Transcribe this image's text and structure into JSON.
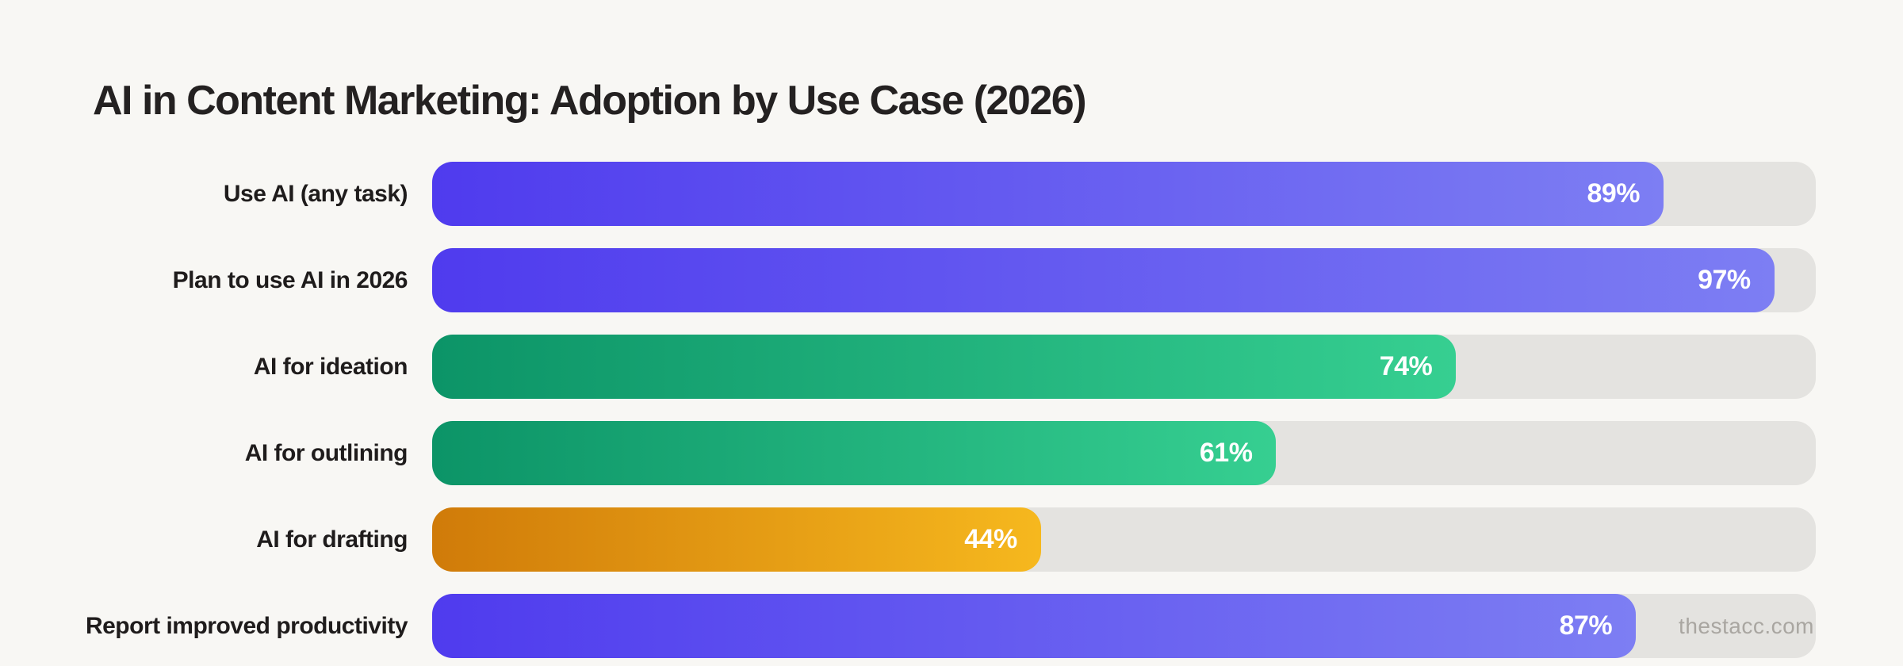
{
  "page": {
    "background": "#F8F7F4",
    "watermark": "thestacc.com"
  },
  "chart_data": {
    "type": "bar",
    "orientation": "horizontal",
    "title": "AI in Content Marketing: Adoption by Use Case (2026)",
    "categories": [
      "Use AI (any task)",
      "Plan to use AI in 2026",
      "AI for ideation",
      "AI for outlining",
      "AI for drafting",
      "Report improved productivity"
    ],
    "values": [
      89,
      97,
      74,
      61,
      44,
      87
    ],
    "value_suffix": "%",
    "xlim": [
      0,
      100
    ],
    "grid": false,
    "legend": false,
    "axis_labels_visible": false,
    "track_color": "#E4E3E0",
    "value_label_color": "#FFFFFF",
    "label_color": "#1F1C1C",
    "title_color": "#242121",
    "bar_gradients": [
      {
        "from": "#4F3BEE",
        "to": "#7D7EF3"
      },
      {
        "from": "#4F3BEE",
        "to": "#7D7EF3"
      },
      {
        "from": "#0C9467",
        "to": "#36CF91"
      },
      {
        "from": "#0C9467",
        "to": "#36CF91"
      },
      {
        "from": "#D07B09",
        "to": "#F6B81E"
      },
      {
        "from": "#4F3BEE",
        "to": "#7D7EF3"
      }
    ]
  }
}
